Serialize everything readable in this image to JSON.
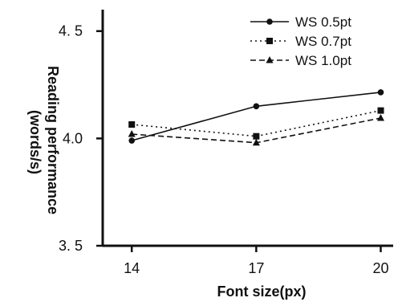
{
  "chart_data": {
    "type": "line",
    "x": [
      14,
      17,
      20
    ],
    "x_tick_labels": [
      "14",
      "17",
      "20"
    ],
    "y_tick_labels": [
      "3. 5",
      "4.0",
      "4. 5"
    ],
    "y_ticks": [
      3.5,
      4.0,
      4.5
    ],
    "ylim": [
      3.5,
      4.6
    ],
    "xlim": [
      13.3,
      20.3
    ],
    "xlabel": "Font size(px)",
    "ylabel_lines": [
      "Reading performance",
      "(words/s)"
    ],
    "legend_position": "top-right",
    "grid": false,
    "series": [
      {
        "name": "WS 0.5pt",
        "values": [
          3.99,
          4.15,
          4.215
        ],
        "line_style": "solid",
        "marker": "circle"
      },
      {
        "name": "WS 0.7pt",
        "values": [
          4.065,
          4.01,
          4.13
        ],
        "line_style": "dotted",
        "marker": "square"
      },
      {
        "name": "WS 1.0pt",
        "values": [
          4.02,
          3.98,
          4.095
        ],
        "line_style": "dashed",
        "marker": "triangle"
      }
    ],
    "colors": {
      "ink": "#111111",
      "background": "#ffffff"
    }
  }
}
